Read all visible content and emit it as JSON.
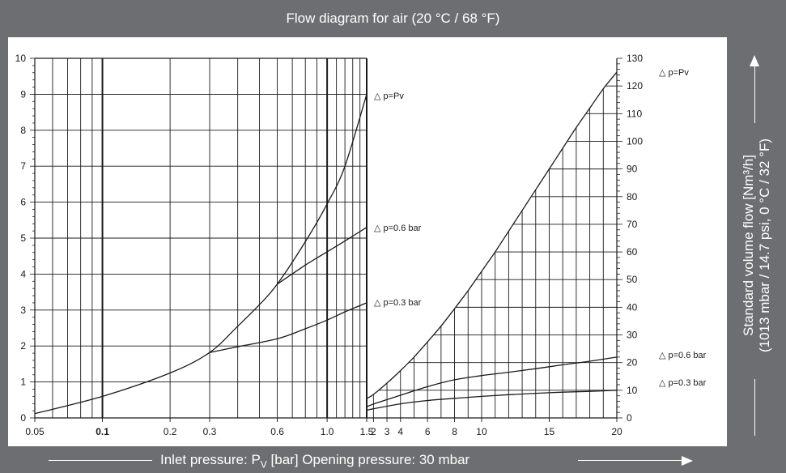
{
  "title": "Flow diagram for air (20 °C / 68 °F)",
  "x_caption": {
    "before_sub": "Inlet pressure: P",
    "sub": "V",
    "after_sub": " [bar] Opening pressure: 30 mbar"
  },
  "y_caption": {
    "line1": "Standard volume flow [Nm³/h]",
    "line2": "(1013 mbar / 14.7 psi, 0 °C / 32 °F)"
  },
  "colors": {
    "frame": "#6d6e71",
    "panel": "#ffffff",
    "ink": "#1a1a1a"
  },
  "chart_data": [
    {
      "type": "line",
      "x_scale": "log",
      "xlim": [
        0.05,
        1.5
      ],
      "ylim": [
        0,
        10
      ],
      "x_ticks": [
        0.05,
        0.1,
        0.2,
        0.3,
        0.6,
        1.0,
        1.5
      ],
      "x_tick_labels": [
        "0.05",
        "0.1",
        "0.2",
        "0.3",
        "0.6",
        "1.0",
        "1.5"
      ],
      "y_ticks": [
        0,
        1,
        2,
        3,
        4,
        5,
        6,
        7,
        8,
        9,
        10
      ],
      "y_tick_labels": [
        "0",
        "1",
        "2",
        "3",
        "4",
        "5",
        "6",
        "7",
        "8",
        "9",
        "10"
      ],
      "grid": true,
      "series": [
        {
          "name": "△ p=Pv",
          "x": [
            0.05,
            0.1,
            0.2,
            0.3,
            0.4,
            0.5,
            0.6,
            0.8,
            1.0,
            1.2,
            1.5
          ],
          "y": [
            0.12,
            0.6,
            1.25,
            1.82,
            2.55,
            3.15,
            3.72,
            4.9,
            5.95,
            7.0,
            9.0
          ]
        },
        {
          "name": "△ p=0.6 bar",
          "x": [
            0.6,
            0.8,
            1.0,
            1.2,
            1.5
          ],
          "y": [
            3.72,
            4.25,
            4.62,
            4.92,
            5.3
          ]
        },
        {
          "name": "△ p=0.3 bar",
          "x": [
            0.3,
            0.4,
            0.6,
            0.8,
            1.0,
            1.2,
            1.5
          ],
          "y": [
            1.82,
            1.98,
            2.2,
            2.48,
            2.72,
            2.95,
            3.2
          ]
        }
      ]
    },
    {
      "type": "line",
      "x_scale": "linear",
      "xlim": [
        1.5,
        20
      ],
      "ylim": [
        0,
        130
      ],
      "x_ticks": [
        1.5,
        2,
        3,
        4,
        6,
        8,
        10,
        15,
        20
      ],
      "x_tick_labels": [
        "",
        "2",
        "3",
        "4",
        "6",
        "8",
        "10",
        "15",
        "20"
      ],
      "y_ticks": [
        0,
        10,
        20,
        30,
        40,
        50,
        60,
        70,
        80,
        90,
        100,
        110,
        120,
        130
      ],
      "y_tick_labels": [
        "0",
        "10",
        "20",
        "30",
        "40",
        "50",
        "60",
        "70",
        "80",
        "90",
        "100",
        "110",
        "120",
        "130"
      ],
      "grid": true,
      "series": [
        {
          "name": "△ p=Pv",
          "x": [
            1.5,
            2,
            3,
            4,
            5,
            6,
            7,
            8,
            9,
            10,
            11,
            12,
            13,
            14,
            15,
            16,
            17,
            18,
            19,
            20
          ],
          "y": [
            7,
            8.5,
            12.6,
            17.1,
            22,
            27.5,
            33.2,
            39.5,
            46,
            53,
            60,
            67.5,
            75,
            82.5,
            90,
            97.5,
            105,
            112,
            119,
            125
          ]
        },
        {
          "name": "△ p=0.6 bar",
          "x": [
            1.5,
            2,
            4,
            6,
            8,
            10,
            12,
            14,
            16,
            18,
            20
          ],
          "y": [
            4,
            5,
            8.2,
            11.3,
            13.8,
            15.3,
            16.5,
            17.8,
            19.2,
            20.5,
            22
          ]
        },
        {
          "name": "△ p=0.3 bar",
          "x": [
            1.5,
            2,
            4,
            6,
            8,
            10,
            12,
            14,
            16,
            18,
            20
          ],
          "y": [
            2.8,
            3.3,
            5.1,
            6.3,
            7.1,
            7.8,
            8.4,
            8.9,
            9.3,
            9.6,
            10
          ]
        }
      ]
    }
  ]
}
